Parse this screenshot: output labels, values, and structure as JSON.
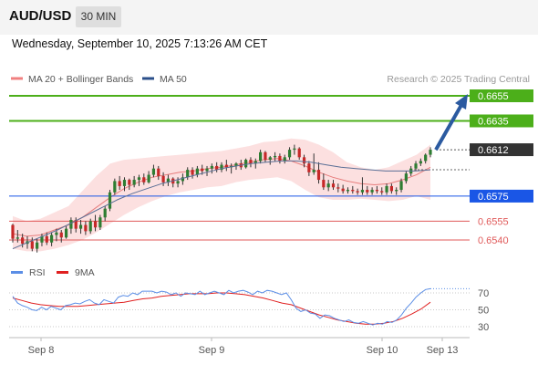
{
  "header": {
    "symbol": "AUD/USD",
    "timeframe": "30 MIN",
    "datetime": "Wednesday, September 10, 2025 7:13:26 AM CET"
  },
  "colors": {
    "bull": "#2e7d32",
    "bear": "#c62828",
    "resistance": "#4caf1a",
    "support": "#1a56e6",
    "minor_support": "#e05a5a",
    "arrow": "#2b5aa0",
    "ma20": "#e77d7d",
    "band_fill": "#fbd6d6",
    "ma50": "#5a6f96",
    "rsi": "#5b8ee6",
    "rsi_ma": "#e02020",
    "current_price_bg": "#333333"
  },
  "chart_data": [
    {
      "type": "candlestick",
      "legend": [
        {
          "name": "MA 20 + Bollinger Bands",
          "color": "#f08080"
        },
        {
          "name": "MA 50",
          "color": "#2b4f8a"
        }
      ],
      "watermark": "Research © 2025 Trading Central",
      "x_ticks": [
        "Sep 8",
        "Sep 9",
        "Sep 10",
        "Sep 13"
      ],
      "price_levels": [
        {
          "label": "0.6655",
          "value": 0.6655,
          "kind": "resistance"
        },
        {
          "label": "0.6635",
          "value": 0.6635,
          "kind": "resistance"
        },
        {
          "label": "0.6612",
          "value": 0.6612,
          "kind": "current"
        },
        {
          "label": "0.6575",
          "value": 0.6575,
          "kind": "support"
        },
        {
          "label": "0.6555",
          "value": 0.6555,
          "kind": "minor"
        },
        {
          "label": "0.6540",
          "value": 0.654,
          "kind": "minor"
        }
      ],
      "ohlc": [
        [
          0.6552,
          0.6553,
          0.6538,
          0.6541
        ],
        [
          0.6541,
          0.6548,
          0.6538,
          0.6542
        ],
        [
          0.6542,
          0.6545,
          0.6534,
          0.6537
        ],
        [
          0.6537,
          0.6543,
          0.6533,
          0.6539
        ],
        [
          0.6539,
          0.6542,
          0.6531,
          0.6533
        ],
        [
          0.6533,
          0.6541,
          0.653,
          0.6538
        ],
        [
          0.6538,
          0.6545,
          0.6535,
          0.6543
        ],
        [
          0.6543,
          0.6546,
          0.6536,
          0.6538
        ],
        [
          0.6538,
          0.6546,
          0.6535,
          0.6544
        ],
        [
          0.6544,
          0.6549,
          0.6539,
          0.6546
        ],
        [
          0.6546,
          0.6548,
          0.6538,
          0.6542
        ],
        [
          0.6542,
          0.6551,
          0.6541,
          0.6549
        ],
        [
          0.6549,
          0.6558,
          0.6545,
          0.6556
        ],
        [
          0.6556,
          0.6558,
          0.6546,
          0.6549
        ],
        [
          0.6549,
          0.6556,
          0.6545,
          0.6552
        ],
        [
          0.6552,
          0.6555,
          0.6544,
          0.6547
        ],
        [
          0.6547,
          0.6557,
          0.6545,
          0.6555
        ],
        [
          0.6555,
          0.656,
          0.6547,
          0.655
        ],
        [
          0.655,
          0.656,
          0.6548,
          0.6558
        ],
        [
          0.6558,
          0.6567,
          0.6555,
          0.6565
        ],
        [
          0.6565,
          0.658,
          0.6563,
          0.6578
        ],
        [
          0.6578,
          0.6589,
          0.6576,
          0.6587
        ],
        [
          0.6587,
          0.6591,
          0.658,
          0.6583
        ],
        [
          0.6583,
          0.659,
          0.6579,
          0.6588
        ],
        [
          0.6588,
          0.6589,
          0.658,
          0.6584
        ],
        [
          0.6584,
          0.6591,
          0.6582,
          0.6588
        ],
        [
          0.6588,
          0.6592,
          0.6583,
          0.659
        ],
        [
          0.659,
          0.6593,
          0.6584,
          0.6586
        ],
        [
          0.6586,
          0.6595,
          0.6585,
          0.6592
        ],
        [
          0.6592,
          0.66,
          0.659,
          0.6597
        ],
        [
          0.6597,
          0.6599,
          0.6588,
          0.6591
        ],
        [
          0.6591,
          0.6594,
          0.6583,
          0.6586
        ],
        [
          0.6586,
          0.6592,
          0.6583,
          0.6589
        ],
        [
          0.6589,
          0.659,
          0.6582,
          0.6585
        ],
        [
          0.6585,
          0.659,
          0.6582,
          0.6587
        ],
        [
          0.6587,
          0.6593,
          0.6584,
          0.659
        ],
        [
          0.659,
          0.6598,
          0.6588,
          0.6596
        ],
        [
          0.6596,
          0.6598,
          0.6589,
          0.6592
        ],
        [
          0.6592,
          0.6599,
          0.659,
          0.6597
        ],
        [
          0.6597,
          0.66,
          0.6592,
          0.6595
        ],
        [
          0.6595,
          0.6599,
          0.6591,
          0.6597
        ],
        [
          0.6597,
          0.6601,
          0.6593,
          0.6599
        ],
        [
          0.6599,
          0.6602,
          0.6594,
          0.6596
        ],
        [
          0.6596,
          0.6602,
          0.6594,
          0.66
        ],
        [
          0.66,
          0.6604,
          0.6595,
          0.6598
        ],
        [
          0.6598,
          0.6601,
          0.6593,
          0.6599
        ],
        [
          0.6599,
          0.6602,
          0.6596,
          0.6601
        ],
        [
          0.6601,
          0.6604,
          0.6596,
          0.6598
        ],
        [
          0.6598,
          0.6605,
          0.6597,
          0.6604
        ],
        [
          0.6604,
          0.6606,
          0.6598,
          0.6601
        ],
        [
          0.6601,
          0.6605,
          0.6597,
          0.6603
        ],
        [
          0.6603,
          0.6612,
          0.6601,
          0.661
        ],
        [
          0.661,
          0.6611,
          0.6602,
          0.6604
        ],
        [
          0.6604,
          0.6607,
          0.66,
          0.6606
        ],
        [
          0.6606,
          0.661,
          0.6603,
          0.6607
        ],
        [
          0.6607,
          0.6609,
          0.6601,
          0.6603
        ],
        [
          0.6603,
          0.6608,
          0.6601,
          0.6606
        ],
        [
          0.6606,
          0.6614,
          0.6604,
          0.6612
        ],
        [
          0.6612,
          0.6616,
          0.6608,
          0.6613
        ],
        [
          0.6613,
          0.6614,
          0.6604,
          0.6606
        ],
        [
          0.6606,
          0.6608,
          0.6598,
          0.6601
        ],
        [
          0.6601,
          0.6603,
          0.6591,
          0.6594
        ],
        [
          0.6594,
          0.6609,
          0.6592,
          0.6596
        ],
        [
          0.6596,
          0.6602,
          0.6585,
          0.6588
        ],
        [
          0.6588,
          0.6593,
          0.658,
          0.6582
        ],
        [
          0.6582,
          0.6588,
          0.6579,
          0.6585
        ],
        [
          0.6585,
          0.6588,
          0.658,
          0.6582
        ],
        [
          0.6582,
          0.6585,
          0.6578,
          0.6581
        ],
        [
          0.6581,
          0.6584,
          0.6577,
          0.6579
        ],
        [
          0.6579,
          0.6582,
          0.6577,
          0.658
        ],
        [
          0.658,
          0.6583,
          0.6577,
          0.6579
        ],
        [
          0.6579,
          0.6581,
          0.6576,
          0.6578
        ],
        [
          0.6578,
          0.659,
          0.6576,
          0.658
        ],
        [
          0.658,
          0.6583,
          0.6576,
          0.6578
        ],
        [
          0.6578,
          0.6582,
          0.6576,
          0.658
        ],
        [
          0.658,
          0.6583,
          0.6577,
          0.6579
        ],
        [
          0.6579,
          0.6582,
          0.6576,
          0.6578
        ],
        [
          0.6578,
          0.6585,
          0.6576,
          0.6583
        ],
        [
          0.6583,
          0.6585,
          0.6577,
          0.6579
        ],
        [
          0.6579,
          0.6582,
          0.6576,
          0.658
        ],
        [
          0.658,
          0.6589,
          0.6578,
          0.6587
        ],
        [
          0.6587,
          0.6595,
          0.6585,
          0.6593
        ],
        [
          0.6593,
          0.6599,
          0.6591,
          0.6597
        ],
        [
          0.6597,
          0.6603,
          0.6595,
          0.6601
        ],
        [
          0.6601,
          0.6605,
          0.6599,
          0.6603
        ],
        [
          0.6603,
          0.6609,
          0.6601,
          0.6608
        ],
        [
          0.6608,
          0.6614,
          0.6606,
          0.6612
        ]
      ],
      "bollinger": {
        "ma20": [
          0.6545,
          0.6543,
          0.6544,
          0.6548,
          0.6552,
          0.6558,
          0.6566,
          0.6574,
          0.6581,
          0.6586,
          0.659,
          0.6592,
          0.6594,
          0.6595,
          0.6597,
          0.6598,
          0.66,
          0.6602,
          0.6604,
          0.6605,
          0.6603,
          0.6599,
          0.6594,
          0.659,
          0.6587,
          0.6585,
          0.6584,
          0.6585,
          0.6588,
          0.6592,
          0.6598
        ],
        "upper": [
          0.6559,
          0.6555,
          0.6557,
          0.6562,
          0.6567,
          0.6579,
          0.6591,
          0.6601,
          0.6604,
          0.6605,
          0.6606,
          0.6607,
          0.6608,
          0.6609,
          0.661,
          0.6611,
          0.6613,
          0.6615,
          0.6618,
          0.6619,
          0.6621,
          0.662,
          0.6616,
          0.661,
          0.6602,
          0.6598,
          0.6596,
          0.6598,
          0.6603,
          0.6608,
          0.6616
        ],
        "lower": [
          0.6533,
          0.6531,
          0.6531,
          0.6533,
          0.6536,
          0.654,
          0.6546,
          0.6553,
          0.656,
          0.6566,
          0.6571,
          0.6575,
          0.6578,
          0.658,
          0.6582,
          0.6583,
          0.6586,
          0.6588,
          0.6589,
          0.659,
          0.6587,
          0.658,
          0.6574,
          0.6572,
          0.6572,
          0.6573,
          0.6572,
          0.6571,
          0.6572,
          0.6575,
          0.6572
        ]
      },
      "ma50": [
        0.6533,
        0.6538,
        0.6543,
        0.6548,
        0.6554,
        0.656,
        0.6566,
        0.6572,
        0.6577,
        0.6581,
        0.6585,
        0.6588,
        0.6591,
        0.6594,
        0.6597,
        0.6599,
        0.6601,
        0.6602,
        0.6603,
        0.6603,
        0.6602,
        0.66,
        0.6598,
        0.6597,
        0.6596,
        0.6595,
        0.6595,
        0.6595,
        0.6596
      ],
      "forecast_arrow": {
        "from": 0.6612,
        "to": 0.6655
      }
    },
    {
      "type": "line",
      "legend": [
        {
          "name": "RSI",
          "color": "#5b8ee6"
        },
        {
          "name": "9MA",
          "color": "#e02020"
        }
      ],
      "y_ticks": [
        70,
        50,
        30
      ],
      "ylim": [
        20,
        85
      ],
      "series": [
        {
          "name": "RSI",
          "values": [
            66,
            58,
            55,
            53,
            50,
            49,
            53,
            50,
            54,
            52,
            50,
            55,
            56,
            58,
            57,
            60,
            62,
            58,
            56,
            62,
            60,
            58,
            65,
            67,
            66,
            70,
            68,
            72,
            72,
            72,
            70,
            72,
            71,
            68,
            70,
            66,
            70,
            69,
            68,
            72,
            68,
            70,
            72,
            70,
            68,
            73,
            70,
            72,
            73,
            71,
            68,
            72,
            70,
            73,
            72,
            70,
            68,
            70,
            62,
            52,
            48,
            50,
            46,
            45,
            40,
            44,
            43,
            40,
            38,
            36,
            38,
            35,
            34,
            36,
            34,
            32,
            34,
            33,
            36,
            35,
            38,
            44,
            52,
            58,
            65,
            70,
            74,
            75
          ]
        },
        {
          "name": "9MA",
          "values": [
            64,
            61,
            58,
            56,
            55,
            54,
            54,
            54,
            55,
            56,
            57,
            58,
            59,
            61,
            63,
            64,
            66,
            67,
            68,
            69,
            69,
            69,
            70,
            70,
            69,
            68,
            66,
            64,
            61,
            58,
            56,
            52,
            48,
            44,
            41,
            38,
            36,
            34,
            33,
            33,
            34,
            36,
            40,
            45,
            51,
            59
          ]
        }
      ]
    }
  ]
}
